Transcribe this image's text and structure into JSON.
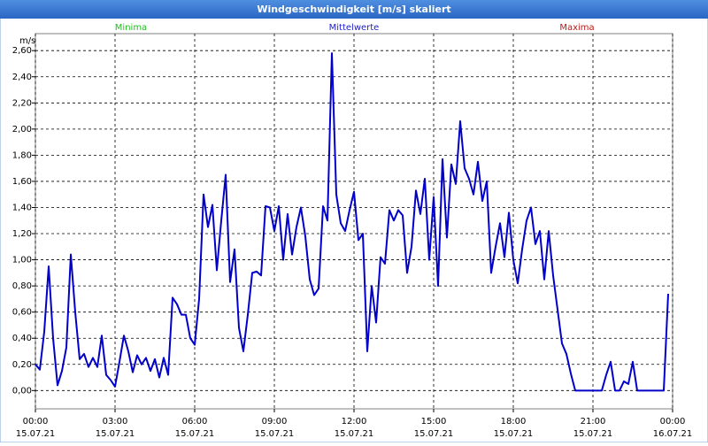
{
  "chart_data": {
    "type": "line",
    "title": "Windgeschwindigkeit [m/s] skaliert",
    "y_unit": "m/s",
    "legend": [
      {
        "name": "Minima",
        "color": "#20c020"
      },
      {
        "name": "Mittelwerte",
        "color": "#2020d0"
      },
      {
        "name": "Maxima",
        "color": "#c01818"
      }
    ],
    "line_color": "#0000c8",
    "grid": true,
    "xlim": [
      0,
      1440
    ],
    "ylim": [
      -0.14,
      2.73
    ],
    "xticks": [
      {
        "value": 0,
        "label": "00:00",
        "date": "15.07.21"
      },
      {
        "value": 180,
        "label": "03:00",
        "date": "15.07.21"
      },
      {
        "value": 360,
        "label": "06:00",
        "date": "15.07.21"
      },
      {
        "value": 540,
        "label": "09:00",
        "date": "15.07.21"
      },
      {
        "value": 720,
        "label": "12:00",
        "date": "15.07.21"
      },
      {
        "value": 900,
        "label": "15:00",
        "date": "15.07.21"
      },
      {
        "value": 1080,
        "label": "18:00",
        "date": "15.07.21"
      },
      {
        "value": 1260,
        "label": "21:00",
        "date": "15.07.21"
      },
      {
        "value": 1440,
        "label": "00:00",
        "date": "16.07.21"
      }
    ],
    "yticks": [
      {
        "value": 0,
        "label": "0,00"
      },
      {
        "value": 0.2,
        "label": "0,20"
      },
      {
        "value": 0.4,
        "label": "0,40"
      },
      {
        "value": 0.6,
        "label": "0,60"
      },
      {
        "value": 0.8,
        "label": "0,80"
      },
      {
        "value": 1.0,
        "label": "1,00"
      },
      {
        "value": 1.2,
        "label": "1,20"
      },
      {
        "value": 1.4,
        "label": "1,40"
      },
      {
        "value": 1.6,
        "label": "1,60"
      },
      {
        "value": 1.8,
        "label": "1,80"
      },
      {
        "value": 2.0,
        "label": "2,00"
      },
      {
        "value": 2.2,
        "label": "2,20"
      },
      {
        "value": 2.4,
        "label": "2,40"
      },
      {
        "value": 2.6,
        "label": "2,60"
      }
    ],
    "x": [
      0,
      10,
      20,
      30,
      40,
      50,
      60,
      70,
      80,
      90,
      100,
      110,
      120,
      130,
      140,
      150,
      160,
      170,
      180,
      190,
      200,
      210,
      220,
      230,
      240,
      250,
      260,
      270,
      280,
      290,
      300,
      310,
      320,
      330,
      340,
      350,
      360,
      370,
      380,
      390,
      400,
      410,
      420,
      430,
      440,
      450,
      460,
      470,
      480,
      490,
      500,
      510,
      520,
      530,
      540,
      550,
      560,
      570,
      580,
      590,
      600,
      610,
      620,
      630,
      640,
      650,
      660,
      670,
      680,
      690,
      700,
      710,
      720,
      730,
      740,
      750,
      760,
      770,
      780,
      790,
      800,
      810,
      820,
      830,
      840,
      850,
      860,
      870,
      880,
      890,
      900,
      910,
      920,
      930,
      940,
      950,
      960,
      970,
      980,
      990,
      1000,
      1010,
      1020,
      1030,
      1040,
      1050,
      1060,
      1070,
      1080,
      1090,
      1100,
      1110,
      1120,
      1130,
      1140,
      1150,
      1160,
      1170,
      1180,
      1190,
      1200,
      1210,
      1220,
      1230,
      1240,
      1250,
      1260,
      1270,
      1280,
      1290,
      1300,
      1310,
      1320,
      1330,
      1340,
      1350,
      1360,
      1370,
      1380,
      1390,
      1400,
      1410,
      1420,
      1430
    ],
    "values": [
      0.2,
      0.16,
      0.45,
      0.95,
      0.4,
      0.04,
      0.15,
      0.33,
      1.04,
      0.6,
      0.24,
      0.28,
      0.18,
      0.25,
      0.18,
      0.42,
      0.12,
      0.08,
      0.03,
      0.22,
      0.42,
      0.3,
      0.14,
      0.27,
      0.2,
      0.25,
      0.15,
      0.24,
      0.1,
      0.25,
      0.12,
      0.71,
      0.66,
      0.58,
      0.58,
      0.4,
      0.35,
      0.7,
      1.5,
      1.25,
      1.42,
      0.92,
      1.3,
      1.65,
      0.83,
      1.08,
      0.48,
      0.3,
      0.58,
      0.9,
      0.91,
      0.88,
      1.41,
      1.4,
      1.22,
      1.41,
      1.0,
      1.35,
      1.04,
      1.25,
      1.4,
      1.18,
      0.85,
      0.73,
      0.78,
      1.41,
      1.3,
      2.58,
      1.5,
      1.28,
      1.22,
      1.38,
      1.52,
      1.15,
      1.2,
      0.3,
      0.8,
      0.52,
      1.02,
      0.97,
      1.38,
      1.3,
      1.38,
      1.34,
      0.9,
      1.1,
      1.53,
      1.35,
      1.62,
      1.0,
      1.48,
      0.8,
      1.77,
      1.17,
      1.73,
      1.58,
      2.06,
      1.7,
      1.62,
      1.5,
      1.75,
      1.45,
      1.6,
      0.9,
      1.1,
      1.28,
      1.02,
      1.36,
      1.0,
      0.82,
      1.08,
      1.3,
      1.4,
      1.12,
      1.22,
      0.85,
      1.22,
      0.88,
      0.62,
      0.36,
      0.28,
      0.13,
      0,
      0,
      0,
      0,
      0,
      0,
      0,
      0.12,
      0.22,
      0,
      0,
      0.07,
      0.05,
      0.22,
      0,
      0,
      0,
      0,
      0,
      0,
      0,
      0.74
    ]
  }
}
